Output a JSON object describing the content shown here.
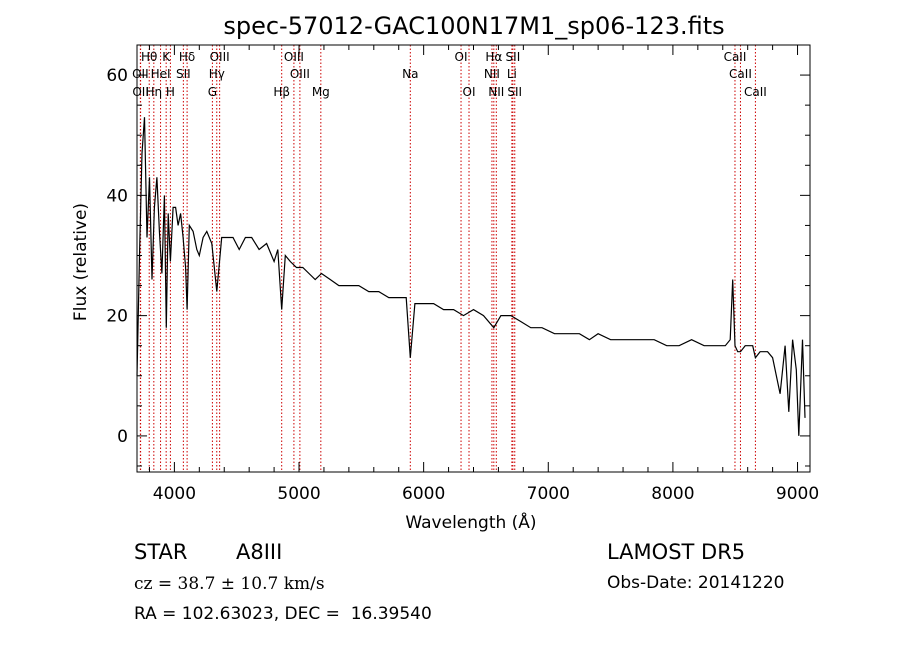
{
  "chart_data": {
    "type": "line",
    "title": "spec-57012-GAC100N17M1_sp06-123.fits",
    "xlabel": "Wavelength (Å)",
    "ylabel": "Flux (relative)",
    "xlim": [
      3700,
      9100
    ],
    "ylim": [
      -6,
      65
    ],
    "xticks": [
      4000,
      5000,
      6000,
      7000,
      8000,
      9000
    ],
    "yticks": [
      0,
      20,
      40,
      60
    ],
    "grid": false,
    "series": [
      {
        "color": "#000000",
        "x": [
          3700,
          3720,
          3740,
          3760,
          3780,
          3800,
          3820,
          3840,
          3860,
          3880,
          3900,
          3920,
          3935,
          3950,
          3968,
          3990,
          4010,
          4030,
          4050,
          4070,
          4090,
          4102,
          4120,
          4150,
          4180,
          4200,
          4230,
          4260,
          4300,
          4340,
          4380,
          4420,
          4470,
          4520,
          4570,
          4620,
          4680,
          4740,
          4800,
          4830,
          4861,
          4890,
          4930,
          4980,
          5030,
          5080,
          5130,
          5180,
          5250,
          5320,
          5400,
          5480,
          5560,
          5640,
          5720,
          5800,
          5860,
          5893,
          5930,
          6000,
          6080,
          6160,
          6240,
          6320,
          6400,
          6480,
          6563,
          6620,
          6700,
          6780,
          6860,
          6950,
          7050,
          7150,
          7250,
          7330,
          7400,
          7500,
          7600,
          7700,
          7780,
          7850,
          7950,
          8050,
          8150,
          8250,
          8350,
          8420,
          8460,
          8480,
          8498,
          8520,
          8542,
          8580,
          8640,
          8662,
          8700,
          8760,
          8800,
          8820,
          8860,
          8900,
          8930,
          8960,
          8990,
          9010,
          9040,
          9060
        ],
        "y": [
          10,
          30,
          47,
          53,
          33,
          43,
          26,
          38,
          43,
          34,
          27,
          40,
          18,
          37,
          29,
          38,
          38,
          35,
          37,
          33,
          28,
          21,
          35,
          34,
          31,
          30,
          33,
          34,
          32,
          24,
          33,
          33,
          33,
          31,
          33,
          33,
          31,
          32,
          29,
          31,
          21,
          30,
          29,
          28,
          28,
          27,
          26,
          27,
          26,
          25,
          25,
          25,
          24,
          24,
          23,
          23,
          23,
          13,
          22,
          22,
          22,
          21,
          21,
          20,
          21,
          20,
          18,
          20,
          20,
          19,
          18,
          18,
          17,
          17,
          17,
          16,
          17,
          16,
          16,
          16,
          16,
          16,
          15,
          15,
          16,
          15,
          15,
          15,
          16,
          26,
          15,
          14,
          14,
          15,
          15,
          13,
          14,
          14,
          13,
          11,
          7,
          15,
          4,
          16,
          11,
          0,
          16,
          3
        ]
      }
    ],
    "lines": [
      {
        "label": "Hθ",
        "x": 3798,
        "row": 0
      },
      {
        "label": "K",
        "x": 3934,
        "row": 0
      },
      {
        "label": "Hδ",
        "x": 4102,
        "row": 0
      },
      {
        "label": "OIII",
        "x": 4363,
        "row": 0
      },
      {
        "label": "OIII",
        "x": 4959,
        "row": 0
      },
      {
        "label": "OI",
        "x": 6300,
        "row": 0
      },
      {
        "label": "Hα",
        "x": 6563,
        "row": 0
      },
      {
        "label": "SII",
        "x": 6716,
        "row": 0
      },
      {
        "label": "CaII",
        "x": 8498,
        "row": 0
      },
      {
        "label": "OII",
        "x": 3727,
        "row": 1
      },
      {
        "label": "HeI",
        "x": 3889,
        "row": 1
      },
      {
        "label": "SII",
        "x": 4072,
        "row": 1
      },
      {
        "label": "Hγ",
        "x": 4340,
        "row": 1
      },
      {
        "label": "OIII",
        "x": 5007,
        "row": 1
      },
      {
        "label": "NII",
        "x": 6548,
        "row": 1
      },
      {
        "label": "Li",
        "x": 6708,
        "row": 1
      },
      {
        "label": "CaII",
        "x": 8542,
        "row": 1
      },
      {
        "label": "OII",
        "x": 3729,
        "row": 2
      },
      {
        "label": "Hη",
        "x": 3835,
        "row": 2
      },
      {
        "label": "H",
        "x": 3968,
        "row": 2
      },
      {
        "label": "G",
        "x": 4305,
        "row": 2
      },
      {
        "label": "Hβ",
        "x": 4861,
        "row": 2
      },
      {
        "label": "Mg",
        "x": 5175,
        "row": 2
      },
      {
        "label": "Na",
        "x": 5893,
        "row": 1
      },
      {
        "label": "OI",
        "x": 6364,
        "row": 2
      },
      {
        "label": "NII",
        "x": 6583,
        "row": 2
      },
      {
        "label": "SII",
        "x": 6731,
        "row": 2
      },
      {
        "label": "CaII",
        "x": 8662,
        "row": 2
      }
    ]
  },
  "info": {
    "object_class": "STAR",
    "subclass": "A8III",
    "survey": "LAMOST DR5",
    "redshift": "cz = 38.7 ± 10.7 km/s",
    "obs_date": "Obs-Date: 20141220",
    "coords": "RA = 102.63023, DEC =  16.39540"
  }
}
